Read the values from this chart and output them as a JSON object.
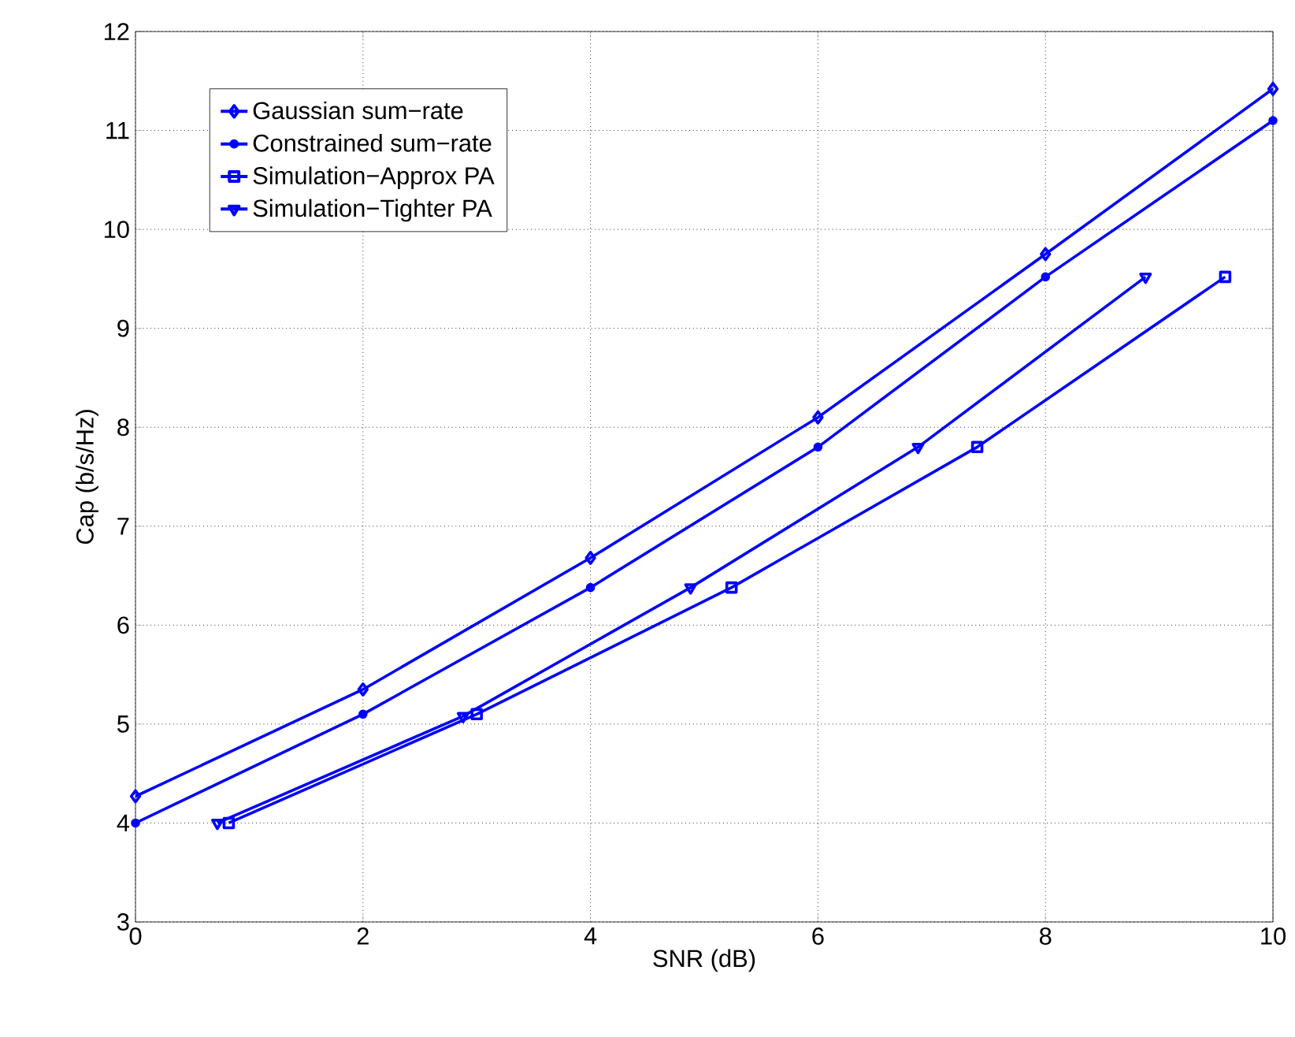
{
  "chart_data": {
    "type": "line",
    "xlabel": "SNR (dB)",
    "ylabel": "Cap (b/s/Hz)",
    "xlim": [
      0,
      10
    ],
    "ylim": [
      3,
      12
    ],
    "xticks": [
      0,
      2,
      4,
      6,
      8,
      10
    ],
    "yticks": [
      3,
      4,
      5,
      6,
      7,
      8,
      9,
      10,
      11,
      12
    ],
    "grid": true,
    "legend": "top left",
    "line_style": "solid",
    "series": [
      {
        "name": "Gaussian sum−rate",
        "color": "#0000ff",
        "marker": "diamond",
        "x": [
          0,
          2,
          4,
          6,
          8,
          10
        ],
        "values": [
          4.27,
          5.35,
          6.68,
          8.1,
          9.75,
          11.42
        ]
      },
      {
        "name": "Constrained sum−rate",
        "color": "#0000ff",
        "marker": "circle",
        "x": [
          0,
          2,
          4,
          6,
          8,
          10
        ],
        "values": [
          4.0,
          5.1,
          6.38,
          7.8,
          9.52,
          11.1
        ]
      },
      {
        "name": "Simulation−Approx PA",
        "color": "#0000ff",
        "marker": "square",
        "x": [
          0.82,
          3.0,
          5.24,
          7.4,
          9.58
        ],
        "values": [
          4.0,
          5.1,
          6.38,
          7.8,
          9.52
        ]
      },
      {
        "name": "Simulation−Tighter PA",
        "color": "#0000ff",
        "marker": "triangle",
        "x": [
          0.72,
          2.88,
          4.88,
          6.88,
          8.88
        ],
        "values": [
          4.0,
          5.08,
          6.38,
          7.8,
          9.52
        ]
      }
    ]
  }
}
